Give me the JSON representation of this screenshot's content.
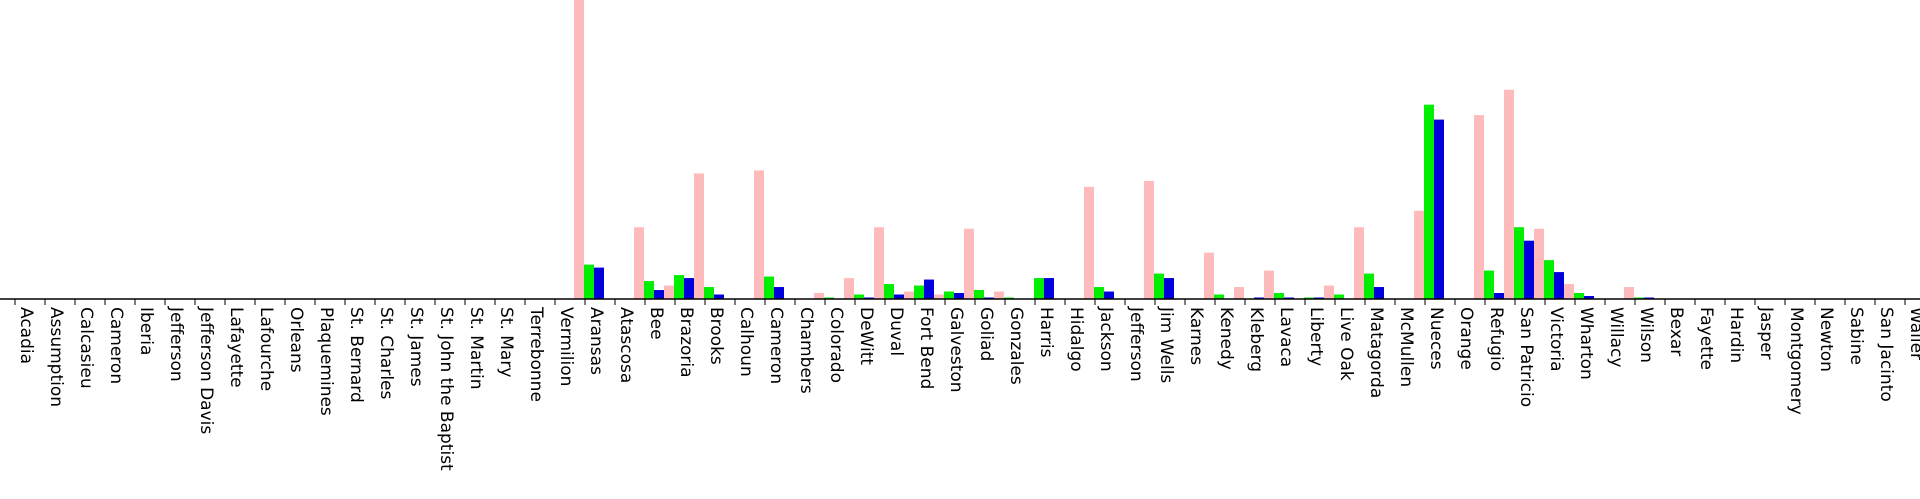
{
  "chart_data": {
    "type": "bar",
    "title": "",
    "xlabel": "",
    "ylabel": "",
    "ylim": [
      0,
      100
    ],
    "legend": "none",
    "grid": false,
    "colors": {
      "series_a": "#ffbbbb",
      "series_b": "#00ee00",
      "series_c": "#0000dd",
      "axis": "#000000"
    },
    "categories": [
      "Acadia",
      "Assumption",
      "Calcasieu",
      "Cameron",
      "Iberia",
      "Jefferson",
      "Jefferson Davis",
      "Lafayette",
      "Lafourche",
      "Orleans",
      "Plaquemines",
      "St. Bernard",
      "St. Charles",
      "St. James",
      "St. John the Baptist",
      "St. Martin",
      "St. Mary",
      "Terrebonne",
      "Vermilion",
      "Aransas",
      "Atascosa",
      "Bee",
      "Brazoria",
      "Brooks",
      "Calhoun",
      "Cameron",
      "Chambers",
      "Colorado",
      "DeWitt",
      "Duval",
      "Fort Bend",
      "Galveston",
      "Goliad",
      "Gonzales",
      "Harris",
      "Hidalgo",
      "Jackson",
      "Jefferson",
      "Jim Wells",
      "Karnes",
      "Kenedy",
      "Kleberg",
      "Lavaca",
      "Liberty",
      "Live Oak",
      "Matagorda",
      "McMullen",
      "Nueces",
      "Orange",
      "Refugio",
      "San Patricio",
      "Victoria",
      "Wharton",
      "Willacy",
      "Wilson",
      "Bexar",
      "Fayette",
      "Hardin",
      "Jasper",
      "Montgomery",
      "Newton",
      "Sabine",
      "San Jacinto",
      "Waller"
    ],
    "series": [
      {
        "values": [
          0,
          0,
          0,
          0,
          0,
          0,
          0,
          0,
          0,
          0,
          0,
          0,
          0,
          0,
          0,
          0,
          0,
          0,
          0,
          100,
          0,
          24,
          4.5,
          42,
          0,
          43,
          0,
          2,
          7,
          24,
          2.5,
          1.5,
          23.5,
          2.5,
          0,
          0,
          37.5,
          0,
          39.5,
          0,
          15.5,
          4,
          9.5,
          0,
          4.5,
          24,
          0,
          29.5,
          0,
          61.5,
          70,
          23.5,
          5,
          0,
          4,
          0,
          0,
          0,
          0,
          0,
          0,
          0,
          0,
          0
        ]
      },
      {
        "values": [
          0,
          0,
          0,
          0,
          0,
          0,
          0,
          0,
          0,
          0,
          0,
          0,
          0,
          0,
          0,
          0,
          0,
          0,
          0,
          11.5,
          0,
          6,
          8,
          4,
          0,
          7.5,
          0,
          0.5,
          1.5,
          5,
          4.5,
          2.5,
          3,
          0.5,
          7,
          0,
          4,
          0,
          8.5,
          0,
          1.5,
          0,
          2,
          0.5,
          1.5,
          8.5,
          0,
          65,
          0,
          9.5,
          24,
          13,
          2,
          0,
          0.5,
          0,
          0,
          0,
          0,
          0,
          0,
          0,
          0,
          0
        ]
      },
      {
        "values": [
          0,
          0,
          0,
          0,
          0,
          0,
          0,
          0,
          0,
          0,
          0,
          0,
          0,
          0,
          0,
          0,
          0,
          0,
          0,
          10.5,
          0,
          3,
          7,
          1.5,
          0,
          4,
          0,
          0,
          0.5,
          1.5,
          6.5,
          2,
          0.5,
          0,
          7,
          0,
          2.5,
          0,
          7,
          0,
          0,
          0.5,
          0.5,
          0.5,
          0,
          4,
          0,
          60,
          0,
          2,
          19.5,
          9,
          1,
          0,
          0.5,
          0,
          0,
          0,
          0,
          0,
          0,
          0,
          0,
          0
        ]
      }
    ]
  }
}
